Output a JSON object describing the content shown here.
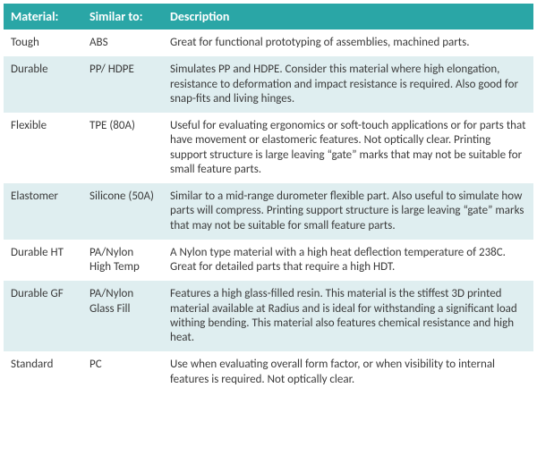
{
  "table": {
    "header_bg": "#2aa6a6",
    "header_text_color": "#ffffff",
    "header_fontsize": 14,
    "body_text_color": "#3b3b3b",
    "body_fontsize": 13,
    "row_alt_bg": "#dfeef0",
    "row_bg": "#ffffff",
    "columns": [
      {
        "key": "material",
        "label": "Material:"
      },
      {
        "key": "similar",
        "label": "Similar to:"
      },
      {
        "key": "desc",
        "label": "Description"
      }
    ],
    "rows": [
      {
        "material": "Tough",
        "similar": "ABS",
        "desc": "Great for functional prototyping of assemblies, machined parts."
      },
      {
        "material": "Durable",
        "similar": "PP/ HDPE",
        "desc": "Simulates PP and HDPE. Consider this material where high elongation, resistance to deformation and impact resistance is required. Also good for snap-fits and living hinges."
      },
      {
        "material": "Flexible",
        "similar": "TPE (80A)",
        "desc": "Useful for evaluating ergonomics or soft-touch applications or for parts that have movement or elastomeric features. Not optically clear. Printing support structure is large leaving “gate” marks that may not be suitable for small feature parts."
      },
      {
        "material": "Elastomer",
        "similar": "Silicone (50A)",
        "desc": "Similar to a mid-range durometer flexible part. Also useful to simulate how parts will compress. Printing support structure is large leaving “gate” marks that may not be suitable for small feature parts."
      },
      {
        "material": "Durable HT",
        "similar": "PA/Nylon High Temp",
        "desc": "A Nylon type material with a high heat deflection temperature of 238C. Great for detailed parts that require a high HDT."
      },
      {
        "material": "Durable GF",
        "similar": "PA/Nylon Glass Fill",
        "desc": "Features a high glass-filled resin. This material is the stiffest 3D printed material available at Radius and is ideal for withstanding a significant load withing bending. This material also features chemical resistance and high heat."
      },
      {
        "material": "Standard",
        "similar": "PC",
        "desc": "Use when evaluating overall form factor, or when visibility to internal features is required. Not optically clear."
      }
    ]
  }
}
